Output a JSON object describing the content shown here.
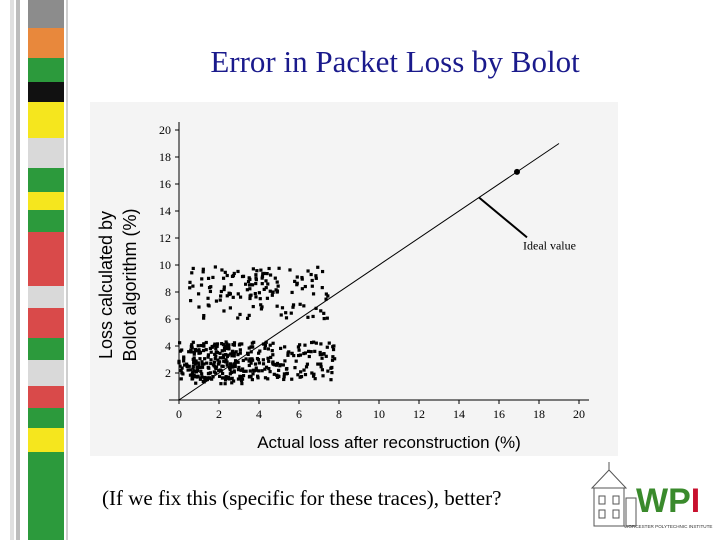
{
  "slide": {
    "title": "Error in Packet Loss by Bolot",
    "caption": "(If we fix this (specific for these traces), better?"
  },
  "colors": {
    "title": "#1a1a8c",
    "wpi_green": "#3a8a2c",
    "wpi_red": "#c8102e",
    "bar_palette": [
      "#8c8c8c",
      "#e8883c",
      "#2c9a3c",
      "#f5e61e",
      "#111111",
      "#d9d9d9",
      "#d94a4a"
    ]
  },
  "logo": {
    "text": "WPI",
    "subtext": "WORCESTER POLYTECHNIC INSTITUTE"
  },
  "chart_data": {
    "type": "scatter",
    "xlabel": "Actual loss after reconstruction (%)",
    "ylabel_line1": "Loss calculated by",
    "ylabel_line2": "Bolot algorithm (%)",
    "xlim": [
      0,
      20
    ],
    "ylim": [
      0,
      20
    ],
    "x_ticks": [
      "0",
      "2",
      "4",
      "6",
      "8",
      "10",
      "12",
      "14",
      "16",
      "18",
      "20"
    ],
    "y_ticks": [
      "2",
      "4",
      "6",
      "8",
      "10",
      "12",
      "14",
      "16",
      "18",
      "20"
    ],
    "grid": false,
    "ideal_line": {
      "x": [
        0,
        19
      ],
      "y": [
        0,
        19
      ]
    },
    "annotation": {
      "text": "Ideal value",
      "point": [
        15,
        15
      ],
      "label_at": [
        17.4,
        11.6
      ]
    },
    "highlight_point": [
      16.9,
      16.9
    ],
    "cluster_low": {
      "x_range": [
        0,
        8
      ],
      "y_range": [
        1.5,
        4.3
      ]
    },
    "cluster_high": {
      "x_range": [
        0.5,
        7.5
      ],
      "y_range": [
        6,
        10
      ]
    }
  }
}
